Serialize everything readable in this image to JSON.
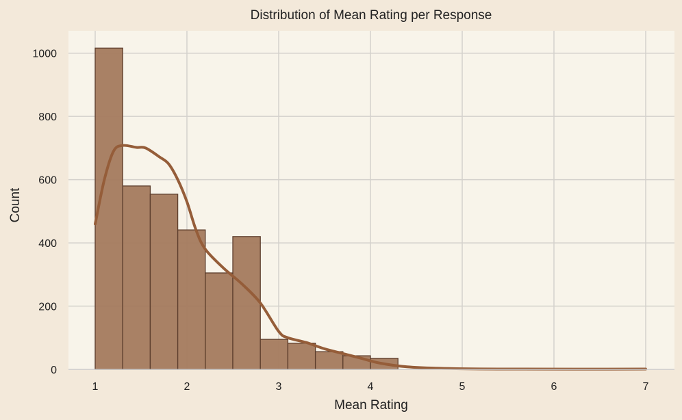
{
  "chart_data": {
    "type": "bar",
    "title": "Distribution of Mean Rating per Response",
    "xlabel": "Mean Rating",
    "ylabel": "Count",
    "xlim": [
      0.7,
      7.3
    ],
    "ylim": [
      0,
      1065
    ],
    "xticks": [
      1,
      2,
      3,
      4,
      5,
      6,
      7
    ],
    "yticks": [
      0,
      200,
      400,
      600,
      800,
      1000
    ],
    "grid": true,
    "bin_width": 0.3,
    "bins": [
      {
        "start": 1.0,
        "count": 1016
      },
      {
        "start": 1.3,
        "count": 580
      },
      {
        "start": 1.6,
        "count": 554
      },
      {
        "start": 1.9,
        "count": 441
      },
      {
        "start": 2.2,
        "count": 305
      },
      {
        "start": 2.5,
        "count": 420
      },
      {
        "start": 2.8,
        "count": 95
      },
      {
        "start": 3.1,
        "count": 83
      },
      {
        "start": 3.4,
        "count": 56
      },
      {
        "start": 3.7,
        "count": 43
      },
      {
        "start": 4.0,
        "count": 35
      }
    ],
    "kde": {
      "x": [
        1.0,
        1.1,
        1.2,
        1.3,
        1.45,
        1.55,
        1.7,
        1.8,
        1.9,
        2.0,
        2.1,
        2.2,
        2.4,
        2.6,
        2.8,
        3.0,
        3.1,
        3.3,
        3.5,
        3.7,
        3.9,
        4.1,
        4.4,
        4.8,
        5.5,
        7.0
      ],
      "y": [
        460,
        600,
        690,
        708,
        702,
        700,
        672,
        650,
        600,
        530,
        440,
        380,
        320,
        270,
        210,
        120,
        100,
        85,
        65,
        50,
        35,
        20,
        8,
        3,
        1,
        1
      ]
    },
    "colors": {
      "bar": "#a47a5e",
      "bar_edge": "#5c3d2c",
      "kde": "#955d39",
      "plot_bg": "#f8f4ea",
      "grid": "#d4d1cc"
    }
  }
}
